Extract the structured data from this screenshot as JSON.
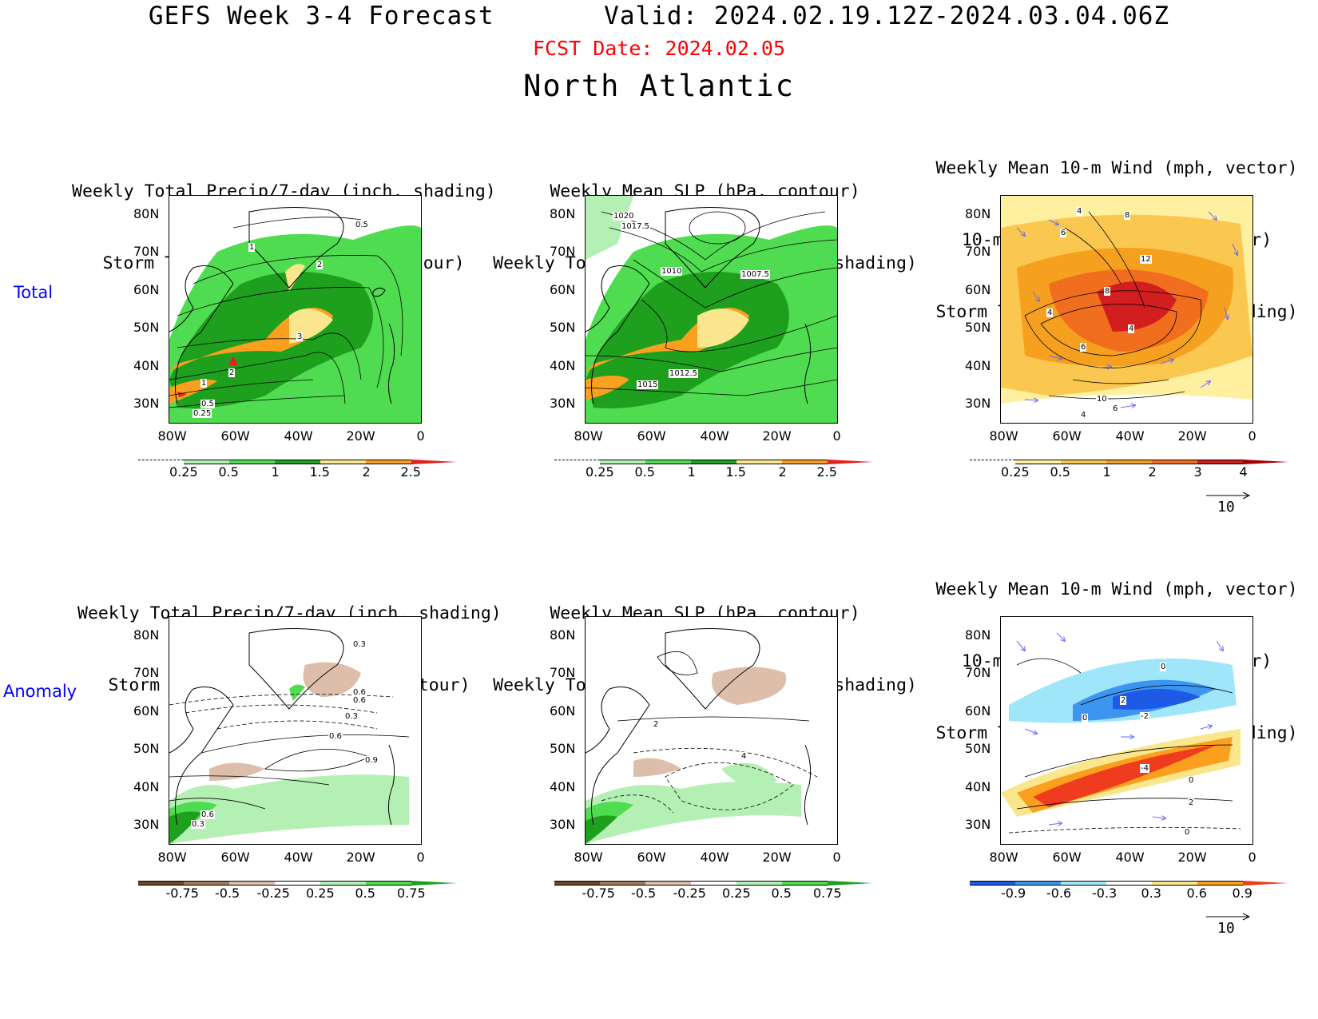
{
  "header": {
    "title": "GEFS Week 3-4 Forecast       Valid: 2024.02.19.12Z-2024.03.04.06Z",
    "fcst_date": "FCST Date: 2024.02.05",
    "region": "North Atlantic"
  },
  "rows": {
    "total": "Total",
    "anomaly": "Anomaly"
  },
  "panel_titles": {
    "precip_track": [
      "Weekly Total Precip/7-day (inch, shading)",
      "Storm Track Density/7-day (contour)"
    ],
    "slp_precip": [
      "Weekly Mean SLP (hPa, contour)",
      "Weekly Total Precip/7-day (inch, shading)"
    ],
    "wind_track": [
      "Weekly Mean 10-m Wind (mph, vector)",
      "10-m Wind Speed (mph, contour)",
      "Storm Track Density/7-day (shading)"
    ]
  },
  "axes": {
    "lat_ticks": [
      "80N",
      "70N",
      "60N",
      "50N",
      "40N",
      "30N"
    ],
    "lon_ticks": [
      "80W",
      "60W",
      "40W",
      "20W",
      "0"
    ]
  },
  "colorbars": {
    "total_precip": {
      "labels": [
        "0.25",
        "0.5",
        "1",
        "1.5",
        "2",
        "2.5"
      ],
      "colors": [
        "#ffffff",
        "#b4f0b4",
        "#50dc50",
        "#1ea01e",
        "#fae68c",
        "#faa01e",
        "#e61e1e"
      ]
    },
    "total_track": {
      "labels": [
        "0.25",
        "0.5",
        "1",
        "2",
        "3",
        "4"
      ],
      "colors": [
        "#ffffff",
        "#fff0a0",
        "#fac850",
        "#f5a01e",
        "#f06e1e",
        "#d21e1e",
        "#a00000"
      ]
    },
    "anom_precip": {
      "labels": [
        "-0.75",
        "-0.5",
        "-0.25",
        "0.25",
        "0.5",
        "0.75"
      ],
      "colors": [
        "#6e4628",
        "#a0785a",
        "#dcbeaa",
        "#ffffff",
        "#b4f0b4",
        "#50dc50",
        "#1ea01e"
      ]
    },
    "anom_track": {
      "labels": [
        "-0.9",
        "-0.6",
        "-0.3",
        "0.3",
        "0.6",
        "0.9"
      ],
      "colors": [
        "#1e5ae6",
        "#3c96f0",
        "#a0e6fa",
        "#ffffff",
        "#fae68c",
        "#faa01e",
        "#f03c1e"
      ]
    }
  },
  "contour_labels": {
    "total_precip_track": [
      "0.5",
      "1",
      "2",
      "3",
      "2",
      "1",
      "0.5",
      "0.25"
    ],
    "total_slp": [
      "1020",
      "1017.5",
      "1010",
      "1007.5",
      "1012.5",
      "1015"
    ],
    "total_wind": [
      "4",
      "8",
      "6",
      "12",
      "8",
      "4",
      "4",
      "6",
      "10",
      "6",
      "4"
    ],
    "anom_precip_track": [
      "0.3",
      "0.6",
      "0.6",
      "0.3",
      "0.6",
      "0.9",
      "0.6",
      "0.3"
    ],
    "anom_slp": [
      "2",
      "4"
    ],
    "anom_wind": [
      "0",
      "2",
      "-2",
      "0",
      "-4",
      "0",
      "2",
      "0"
    ]
  },
  "vector_ref": "10"
}
